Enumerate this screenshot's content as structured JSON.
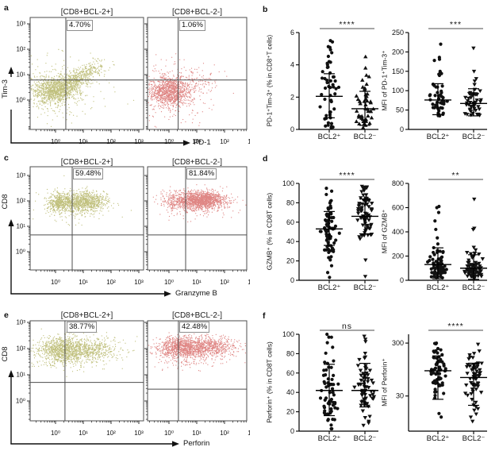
{
  "colors": {
    "bcl2_pos_dots": "#8d8d12",
    "bcl2_neg_dots": "#c5231f",
    "scatter_dots": "#111111",
    "axis": "#333333",
    "quadrant_line": "#4d4d4d",
    "sig_bar": "#4d4d4d"
  },
  "chart_data": {
    "type": "multi-panel: flow-cytometry pseudocolor dot plots (a,c,e) + scatter dot plots with mean±SD (b,d,f)",
    "panels": {
      "a": {
        "letter": "a",
        "type": "flow",
        "y_axis": "Tim-3",
        "x_axis": "PD-1",
        "log_labels": [
          "10⁰",
          "10¹",
          "10²",
          "10³"
        ],
        "plots": [
          {
            "title": "[CD8+BCL-2+]",
            "percent": "4.70%",
            "color": "#8d8d12",
            "quad": {
              "vx": 0.37,
              "hy": 0.79
            },
            "clusters": [
              {
                "n": 900,
                "cx": -0.05,
                "cy": 0.42,
                "sx": 0.4,
                "sy": 0.26
              },
              {
                "n": 350,
                "cx": 0.45,
                "cy": 0.6,
                "sx": 0.45,
                "sy": 0.3,
                "corr": 0.6
              },
              {
                "n": 280,
                "cx": 1.05,
                "cy": 1.05,
                "sx": 0.4,
                "sy": 0.28,
                "corr": 0.7
              },
              {
                "n": 230,
                "cx": 0.1,
                "cy": 0.3,
                "sx": 0.85,
                "sy": 0.75
              }
            ]
          },
          {
            "title": "[CD8+BCL-2-]",
            "percent": "1.06%",
            "color": "#c5231f",
            "quad": {
              "vx": 0.33,
              "hy": 0.79
            },
            "clusters": [
              {
                "n": 1000,
                "cx": 0.0,
                "cy": 0.33,
                "sx": 0.36,
                "sy": 0.28
              },
              {
                "n": 160,
                "cx": 0.7,
                "cy": 0.6,
                "sx": 0.5,
                "sy": 0.35,
                "corr": 0.5
              },
              {
                "n": 190,
                "cx": 0.1,
                "cy": 0.25,
                "sx": 0.8,
                "sy": 0.7
              }
            ]
          }
        ]
      },
      "b": {
        "letter": "b",
        "type": "dots",
        "plots": [
          {
            "ylabel": "PD-1⁺Tim-3⁺ (% in CD8⁺T cells)",
            "ymin": 0,
            "ymax": 6,
            "yticks": [
              0,
              2,
              4,
              6
            ],
            "sig": "****",
            "groups": [
              {
                "label": "BCL2⁺",
                "marker": "circle",
                "n": 52,
                "mean": 2.05,
                "up": 3.45,
                "dn": 0.72,
                "min": 0.1,
                "max": 5.5,
                "outliers": [
                  5.5,
                  5.42,
                  4.75,
                  4.2,
                  4.0
                ]
              },
              {
                "label": "BCL2⁻",
                "marker": "triangle-up",
                "n": 48,
                "mean": 1.28,
                "up": 2.36,
                "dn": 0.25,
                "min": 0.05,
                "max": 4.5,
                "outliers": [
                  4.5,
                  3.8,
                  3.35,
                  3.05
                ]
              }
            ]
          },
          {
            "ylabel": "MFI of PD-1⁺Tim-3⁺",
            "ymin": 0,
            "ymax": 250,
            "yticks": [
              0,
              50,
              100,
              150,
              200,
              250
            ],
            "sig": "***",
            "groups": [
              {
                "label": "BCL2⁺",
                "marker": "circle",
                "n": 50,
                "mean": 76,
                "up": 118,
                "dn": 38,
                "min": 33,
                "max": 220,
                "bulk": {
                  "gmean": 65,
                  "slog": 0.16
                },
                "outliers": [
                  220,
                  186,
                  181,
                  178,
                  150,
                  147
                ]
              },
              {
                "label": "BCL2⁻",
                "marker": "triangle-down",
                "n": 50,
                "mean": 67,
                "up": 105,
                "dn": 35,
                "min": 32,
                "max": 210,
                "bulk": {
                  "gmean": 58,
                  "slog": 0.155
                },
                "outliers": [
                  210,
                  150,
                  131,
                  125
                ]
              }
            ]
          }
        ]
      },
      "c": {
        "letter": "c",
        "type": "flow",
        "y_axis": "CD8",
        "x_axis": "Granzyme B",
        "log_labels": [
          "10⁰",
          "10¹",
          "10²",
          "10³"
        ],
        "plots": [
          {
            "title": "[CD8+BCL-2+]",
            "percent": "59.48%",
            "color": "#8d8d12",
            "quad": {
              "vx": 0.6,
              "hy": 0.66
            },
            "clusters": [
              {
                "n": 420,
                "cx": 0.15,
                "cy": 1.93,
                "sx": 0.22,
                "sy": 0.2
              },
              {
                "n": 800,
                "cx": 1.05,
                "cy": 1.98,
                "sx": 0.38,
                "sy": 0.2
              },
              {
                "n": 150,
                "cx": 0.6,
                "cy": 1.8,
                "sx": 0.6,
                "sy": 0.35
              }
            ]
          },
          {
            "title": "[CD8+BCL-2-]",
            "percent": "81.84%",
            "color": "#c5231f",
            "quad": {
              "vx": 0.6,
              "hy": 0.66
            },
            "clusters": [
              {
                "n": 1300,
                "cx": 1.2,
                "cy": 2.03,
                "sx": 0.42,
                "sy": 0.17
              },
              {
                "n": 260,
                "cx": 0.3,
                "cy": 1.98,
                "sx": 0.3,
                "sy": 0.2
              },
              {
                "n": 150,
                "cx": 0.9,
                "cy": 1.8,
                "sx": 0.6,
                "sy": 0.3
              }
            ]
          }
        ]
      },
      "d": {
        "letter": "d",
        "type": "dots",
        "plots": [
          {
            "ylabel": "GZMB⁺ (% in CD8T cells)",
            "ymin": 0,
            "ymax": 100,
            "yticks": [
              0,
              20,
              40,
              60,
              80,
              100
            ],
            "sig": "****",
            "groups": [
              {
                "label": "BCL2⁺",
                "marker": "circle",
                "n": 76,
                "mean": 53,
                "up": 71,
                "dn": 36,
                "min": 2,
                "max": 95,
                "outliers": [
                  95,
                  92,
                  21,
                  15,
                  8,
                  3
                ]
              },
              {
                "label": "BCL2⁻",
                "marker": "triangle-down",
                "n": 78,
                "mean": 66,
                "up": 84,
                "dn": 48,
                "min": 3,
                "max": 97,
                "outliers": [
                  97,
                  96,
                  95,
                  94,
                  4,
                  21
                ]
              }
            ]
          },
          {
            "ylabel": "MFI of GZMB⁺",
            "ymin": 0,
            "ymax": 800,
            "yticks": [
              0,
              200,
              400,
              600,
              800
            ],
            "sig": "**",
            "groups": [
              {
                "label": "BCL2⁺",
                "marker": "circle",
                "n": 78,
                "mean": 130,
                "up": 268,
                "dn": 13,
                "min": 18,
                "max": 650,
                "bulk": {
                  "gmean": 88,
                  "slog": 0.27
                },
                "outliers": [
                  610,
                  600,
                  560,
                  490,
                  420,
                  350,
                  300,
                  230
                ]
              },
              {
                "label": "BCL2⁻",
                "marker": "triangle-down",
                "n": 80,
                "mean": 100,
                "up": 211,
                "dn": 8,
                "min": 15,
                "max": 670,
                "bulk": {
                  "gmean": 78,
                  "slog": 0.25
                },
                "outliers": [
                  670,
                  430,
                  420,
                  230,
                  225
                ]
              }
            ]
          }
        ]
      },
      "e": {
        "letter": "e",
        "type": "flow",
        "y_axis": "CD8",
        "x_axis": "Perforin",
        "log_labels": [
          "10⁰",
          "10¹",
          "10²",
          "10³"
        ],
        "plots": [
          {
            "title": "[CD8+BCL-2+]",
            "percent": "38.77%",
            "color": "#8d8d12",
            "quad": {
              "vx": 0.34,
              "hy": 0.71
            },
            "clusters": [
              {
                "n": 700,
                "cx": 0.2,
                "cy": 1.93,
                "sx": 0.38,
                "sy": 0.26
              },
              {
                "n": 600,
                "cx": 1.15,
                "cy": 1.98,
                "sx": 0.6,
                "sy": 0.23
              },
              {
                "n": 200,
                "cx": 0.6,
                "cy": 1.8,
                "sx": 0.8,
                "sy": 0.35
              }
            ]
          },
          {
            "title": "[CD8+BCL-2-]",
            "percent": "42.48%",
            "color": "#c5231f",
            "quad": {
              "vx": 0.34,
              "hy": 0.45
            },
            "clusters": [
              {
                "n": 700,
                "cx": 0.35,
                "cy": 2.03,
                "sx": 0.35,
                "sy": 0.2
              },
              {
                "n": 700,
                "cx": 1.3,
                "cy": 2.08,
                "sx": 0.55,
                "sy": 0.18
              },
              {
                "n": 250,
                "cx": 0.8,
                "cy": 1.8,
                "sx": 0.75,
                "sy": 0.3
              }
            ]
          }
        ]
      },
      "f": {
        "letter": "f",
        "type": "dots",
        "plots": [
          {
            "ylabel": "Perforin⁺ (% in CD8T cells)",
            "ymin": 0,
            "ymax": 100,
            "yticks": [
              0,
              20,
              40,
              60,
              80,
              100
            ],
            "sig": "ns",
            "groups": [
              {
                "label": "BCL2⁺",
                "marker": "circle",
                "n": 66,
                "mean": 42,
                "up": 69,
                "dn": 16,
                "min": 1,
                "max": 100,
                "outliers": [
                  100,
                  97
                ]
              },
              {
                "label": "BCL2⁻",
                "marker": "triangle-down",
                "n": 66,
                "mean": 42,
                "up": 70,
                "dn": 25,
                "min": 2,
                "max": 98,
                "outliers": [
                  98,
                  95
                ]
              }
            ]
          },
          {
            "ylabel": "MFI of Perforin⁺",
            "ymin": 6.5,
            "ymax": 440,
            "yscale": "log",
            "yticks": [
              30,
              300
            ],
            "sig": "****",
            "groups": [
              {
                "label": "BCL2⁺",
                "marker": "circle",
                "n": 68,
                "mean": 90,
                "up": 172,
                "dn": 26,
                "min": 11,
                "max": 300,
                "bulk": {
                  "gmean": 88,
                  "slog": 0.26
                },
                "outliers": [
                  300,
                  290,
                  14,
                  12
                ]
              },
              {
                "label": "BCL2⁻",
                "marker": "triangle-down",
                "n": 68,
                "mean": 67,
                "up": 125,
                "dn": 20,
                "min": 10,
                "max": 285,
                "bulk": {
                  "gmean": 68,
                  "slog": 0.27
                },
                "outliers": [
                  285,
                  12,
                  10
                ]
              }
            ]
          }
        ]
      }
    }
  }
}
